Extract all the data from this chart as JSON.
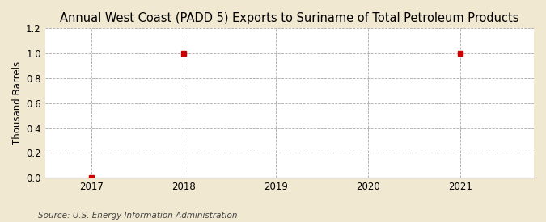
{
  "title": "Annual West Coast (PADD 5) Exports to Suriname of Total Petroleum Products",
  "ylabel": "Thousand Barrels",
  "source": "Source: U.S. Energy Information Administration",
  "x_data": [
    2017,
    2018,
    2021
  ],
  "y_data": [
    0,
    1.0,
    1.0
  ],
  "xlim": [
    2016.5,
    2021.8
  ],
  "ylim": [
    0.0,
    1.2
  ],
  "yticks": [
    0.0,
    0.2,
    0.4,
    0.6,
    0.8,
    1.0,
    1.2
  ],
  "xticks": [
    2017,
    2018,
    2019,
    2020,
    2021
  ],
  "figure_bg_color": "#f0e8d0",
  "plot_bg_color": "#ffffff",
  "marker_color": "#cc0000",
  "marker_style": "s",
  "marker_size": 4,
  "grid_color": "#aaaaaa",
  "grid_linestyle": "--",
  "grid_linewidth": 0.6,
  "title_fontsize": 10.5,
  "label_fontsize": 8.5,
  "tick_fontsize": 8.5,
  "source_fontsize": 7.5
}
